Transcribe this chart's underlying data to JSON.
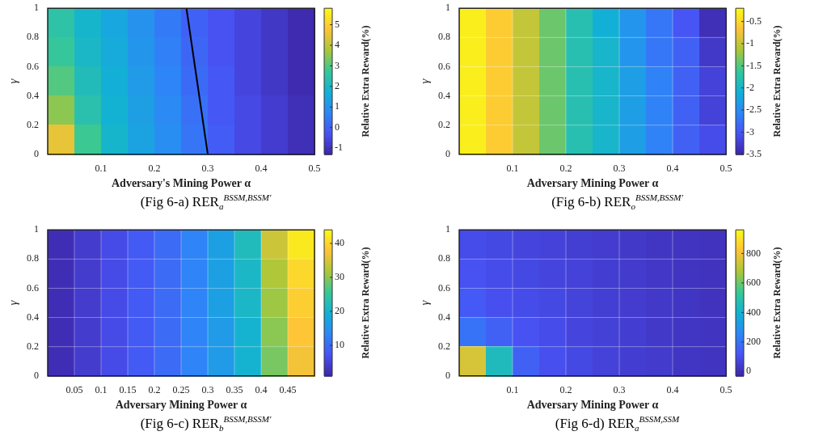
{
  "chart_data": [
    {
      "type": "heatmap",
      "title": "(Fig 6-a)  RER$_{a}$$^{BSSM,BSSM′}$",
      "xlabel": "Adversary's Mining Power α",
      "ylabel": "γ",
      "clabel": "Relative Extra Reward(%)",
      "xlim": [
        0,
        0.5
      ],
      "xticks": [
        0.1,
        0.2,
        0.3,
        0.4,
        0.5
      ],
      "ylim": [
        0,
        1
      ],
      "yticks": [
        0,
        0.2,
        0.4,
        0.6,
        0.8,
        1
      ],
      "clim": [
        -1.3,
        5.8
      ],
      "cticks": [
        -1,
        0,
        1,
        2,
        3,
        4,
        5
      ],
      "cells": [
        [
          2.5,
          1.9,
          1.5,
          1.0,
          0.5,
          0.0,
          -0.3,
          -0.6,
          -0.9,
          -1.2
        ],
        [
          2.7,
          2.0,
          1.6,
          1.1,
          0.6,
          0.1,
          -0.3,
          -0.6,
          -0.9,
          -1.2
        ],
        [
          3,
          2.2,
          1.7,
          1.2,
          0.7,
          0.2,
          -0.2,
          -0.6,
          -0.9,
          -1.2
        ],
        [
          3.5,
          2.4,
          1.8,
          1.3,
          0.8,
          0.3,
          -0.2,
          -0.5,
          -0.8,
          -1.1
        ],
        [
          4.5,
          2.8,
          1.9,
          1.4,
          0.9,
          0.4,
          -0.1,
          -0.5,
          -0.8,
          -1.1
        ]
      ],
      "series": [
        {
          "type": "line",
          "color": "#000000",
          "x": [
            0.26,
            0.28,
            0.3
          ],
          "values": [
            1,
            0.5,
            0
          ]
        }
      ]
    },
    {
      "type": "heatmap",
      "title": "(Fig 6-b)  RER$_{o}$$^{BSSM,BSSM′}$",
      "xlabel": "Adversary Mining Power α",
      "ylabel": "γ",
      "clabel": "Relative Extra Reward(%)",
      "xlim": [
        0,
        0.5
      ],
      "xticks": [
        0.1,
        0.2,
        0.3,
        0.4,
        0.5
      ],
      "ylim": [
        0,
        1
      ],
      "yticks": [
        0,
        0.2,
        0.4,
        0.6,
        0.8,
        1
      ],
      "clim": [
        -3.5,
        -0.2
      ],
      "cticks": [
        -3.5,
        -3,
        -2.5,
        -2,
        -1.5,
        -1,
        -0.5
      ],
      "grid": true,
      "cells": [
        [
          -0.3,
          -0.6,
          -1.0,
          -1.4,
          -1.8,
          -2.1,
          -2.4,
          -2.7,
          -3.0,
          -3.4
        ],
        [
          -0.3,
          -0.6,
          -1.0,
          -1.4,
          -1.8,
          -2.0,
          -2.4,
          -2.7,
          -2.9,
          -3.3
        ],
        [
          -0.3,
          -0.6,
          -1.0,
          -1.4,
          -1.8,
          -2.0,
          -2.3,
          -2.6,
          -2.9,
          -3.2
        ],
        [
          -0.3,
          -0.6,
          -1.0,
          -1.4,
          -1.8,
          -2.0,
          -2.3,
          -2.6,
          -2.9,
          -3.2
        ],
        [
          -0.3,
          -0.6,
          -1.0,
          -1.4,
          -1.8,
          -2.0,
          -2.3,
          -2.6,
          -2.9,
          -3.1
        ]
      ]
    },
    {
      "type": "heatmap",
      "title": "(Fig 6-c)  RER$_{b}$$^{BSSM,BSSM′}$",
      "xlabel": "Adversary Mining Power α",
      "ylabel": "γ",
      "clabel": "Relative Extra Reward(%)",
      "xlim": [
        0,
        0.5
      ],
      "xticks": [
        0.05,
        0.1,
        0.15,
        0.2,
        0.25,
        0.3,
        0.35,
        0.4,
        0.45
      ],
      "ylim": [
        0,
        1
      ],
      "yticks": [
        0,
        0.2,
        0.4,
        0.6,
        0.8,
        1
      ],
      "clim": [
        1,
        44
      ],
      "cticks": [
        10,
        20,
        30,
        40
      ],
      "grid": true,
      "cells": [
        [
          2,
          4,
          6,
          8,
          10,
          13,
          17,
          22,
          34,
          42
        ],
        [
          2,
          4,
          6,
          8,
          10,
          13,
          17,
          21,
          32,
          40
        ],
        [
          2,
          4,
          6,
          8,
          10,
          13,
          17,
          21,
          31,
          39
        ],
        [
          2,
          4,
          6,
          8,
          10,
          13,
          16,
          20,
          30,
          38
        ],
        [
          2,
          4,
          6,
          8,
          10,
          13,
          16,
          20,
          29,
          37
        ]
      ]
    },
    {
      "type": "heatmap",
      "title": "(Fig 6-d)  RER$_{a}$$^{BSSM,SSM}$",
      "xlabel": "Adversary Mining Power α",
      "ylabel": "γ",
      "clabel": "Relative Extra Reward(%)",
      "xlim": [
        0,
        0.5
      ],
      "xticks": [
        0.1,
        0.2,
        0.3,
        0.4,
        0.5
      ],
      "ylim": [
        0,
        1
      ],
      "yticks": [
        0,
        0.2,
        0.4,
        0.6,
        0.8,
        1
      ],
      "clim": [
        -30,
        960
      ],
      "cticks": [
        0,
        200,
        400,
        600,
        800
      ],
      "grid": true,
      "cells": [
        [
          90,
          80,
          70,
          60,
          50,
          40,
          30,
          20,
          15,
          10
        ],
        [
          110,
          90,
          80,
          70,
          60,
          45,
          35,
          25,
          15,
          10
        ],
        [
          130,
          100,
          90,
          80,
          65,
          50,
          40,
          30,
          20,
          10
        ],
        [
          200,
          150,
          110,
          90,
          70,
          55,
          45,
          30,
          20,
          15
        ],
        [
          750,
          450,
          150,
          100,
          80,
          60,
          45,
          35,
          20,
          15
        ]
      ]
    }
  ]
}
